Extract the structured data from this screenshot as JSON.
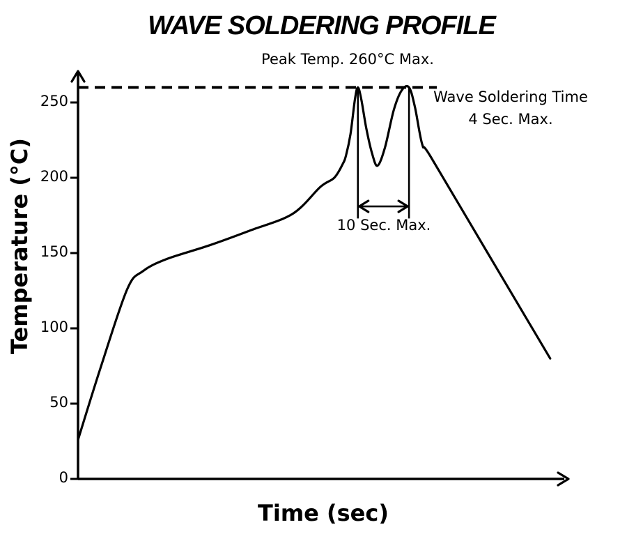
{
  "colors": {
    "ink": "#000000",
    "background": "#ffffff"
  },
  "chart_data": {
    "type": "line",
    "title": "WAVE SOLDERING PROFILE",
    "xlabel": "Time (sec)",
    "ylabel": "Temperature (°C)",
    "ylim": [
      0,
      270
    ],
    "y_ticks": [
      "0",
      "50",
      "100",
      "150",
      "200",
      "250"
    ],
    "x_axis": {
      "numeric_labels": false,
      "units": "relative time 0-100, axis unlabeled"
    },
    "grid": false,
    "legend": false,
    "reference_line": {
      "axis": "y",
      "value": 260,
      "style": "dashed",
      "label": "Peak Temp. 260°C Max."
    },
    "series": [
      {
        "name": "wave soldering temperature profile",
        "points": [
          [
            0,
            26
          ],
          [
            4.7,
            75
          ],
          [
            10,
            126
          ],
          [
            13.2,
            138
          ],
          [
            18,
            146
          ],
          [
            26.6,
            155
          ],
          [
            35,
            165
          ],
          [
            43.6,
            176
          ],
          [
            49.3,
            194
          ],
          [
            52.1,
            200
          ],
          [
            53.8,
            209
          ],
          [
            54.5,
            215
          ],
          [
            55.4,
            229
          ],
          [
            56.3,
            252
          ],
          [
            56.9,
            260
          ],
          [
            57.6,
            252
          ],
          [
            58.6,
            233
          ],
          [
            59.8,
            216
          ],
          [
            60.9,
            208
          ],
          [
            62.4,
            220
          ],
          [
            64.2,
            245
          ],
          [
            65.8,
            258
          ],
          [
            67.3,
            260
          ],
          [
            68.5,
            247
          ],
          [
            70.0,
            222
          ],
          [
            71.7,
            214
          ],
          [
            83.3,
            150
          ],
          [
            96,
            80
          ]
        ]
      }
    ],
    "annotations": {
      "peak_temp": "Peak Temp. 260°C Max.",
      "wave_time": [
        "Wave Soldering Time",
        "4 Sec. Max."
      ],
      "dwell": "10 Sec. Max."
    },
    "markers": {
      "peak1_x": 56.9,
      "peak2_x": 67.3,
      "peak_temp_c": 260,
      "dip_temp_c": 208,
      "marker_bottom_temp": 173,
      "dwell_arrow_temp": 181
    }
  }
}
